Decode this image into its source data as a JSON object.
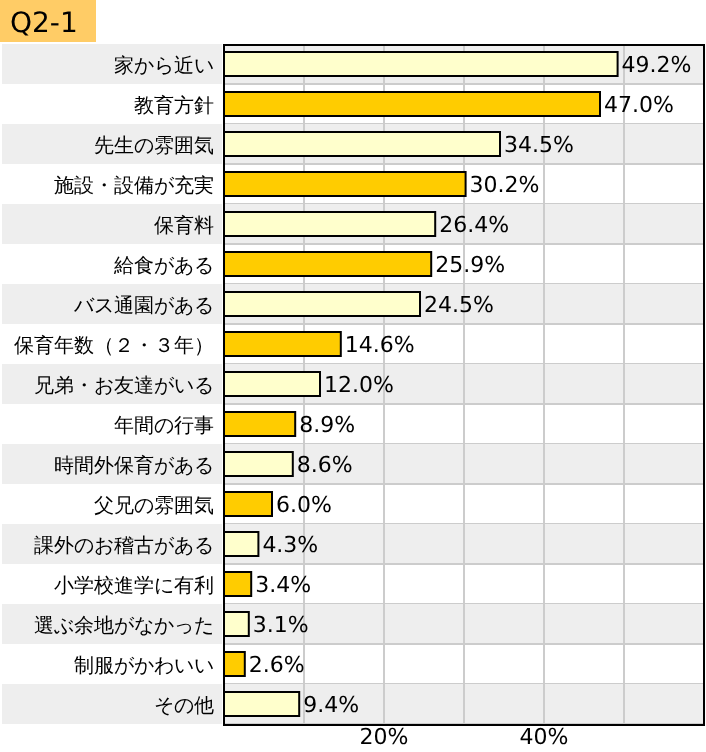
{
  "chart_data": {
    "type": "bar",
    "orientation": "horizontal",
    "title": "Q2-1",
    "categories": [
      "家から近い",
      "教育方針",
      "先生の雰囲気",
      "施設・設備が充実",
      "保育料",
      "給食がある",
      "バス通園がある",
      "保育年数（２・３年）",
      "兄弟・お友達がいる",
      "年間の行事",
      "時間外保育がある",
      "父兄の雰囲気",
      "課外のお稽古がある",
      "小学校進学に有利",
      "選ぶ余地がなかった",
      "制服がかわいい",
      "その他"
    ],
    "values": [
      49.2,
      47.0,
      34.5,
      30.2,
      26.4,
      25.9,
      24.5,
      14.6,
      12.0,
      8.9,
      8.6,
      6.0,
      4.3,
      3.4,
      3.1,
      2.6,
      9.4
    ],
    "value_labels": [
      "49.2%",
      "47.0%",
      "34.5%",
      "30.2%",
      "26.4%",
      "25.9%",
      "24.5%",
      "14.6%",
      "12.0%",
      "8.9%",
      "8.6%",
      "6.0%",
      "4.3%",
      "3.4%",
      "3.1%",
      "2.6%",
      "9.4%"
    ],
    "colors": [
      "#ffffcc",
      "#ffcc00",
      "#ffffcc",
      "#ffcc00",
      "#ffffcc",
      "#ffcc00",
      "#ffffcc",
      "#ffcc00",
      "#ffffcc",
      "#ffcc00",
      "#ffffcc",
      "#ffcc00",
      "#ffffcc",
      "#ffcc00",
      "#ffffcc",
      "#ffcc00",
      "#ffffcc"
    ],
    "xlim": [
      0,
      60
    ],
    "xticks": [
      {
        "value": 10,
        "label": null
      },
      {
        "value": 20,
        "label": "20%"
      },
      {
        "value": 30,
        "label": null
      },
      {
        "value": 40,
        "label": "40%"
      },
      {
        "value": 50,
        "label": null
      }
    ],
    "grid": "x"
  }
}
